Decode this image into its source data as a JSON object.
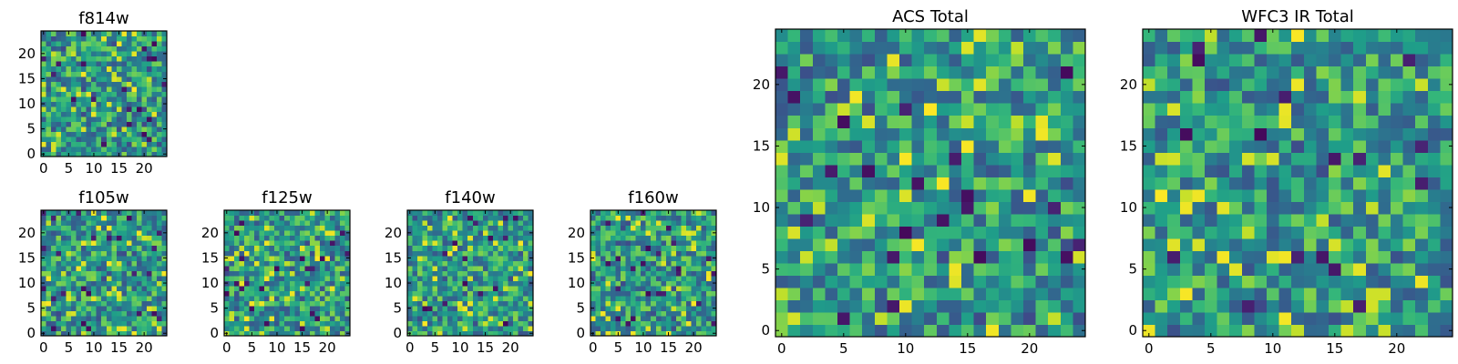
{
  "chart_data": [
    {
      "type": "heatmap",
      "title": "f814w",
      "cells_per_side": 25,
      "xlim": [
        0,
        25
      ],
      "ylim": [
        0,
        25
      ],
      "xticks": [
        0,
        5,
        10,
        15,
        20
      ],
      "yticks": [
        0,
        5,
        10,
        15,
        20
      ],
      "xtick_labels": [
        "0",
        "5",
        "10",
        "15",
        "20"
      ],
      "ytick_labels": [
        "0",
        "5",
        "10",
        "15",
        "20"
      ],
      "colormap": "viridis",
      "value_range": [
        0,
        1
      ],
      "seed": 11
    },
    {
      "type": "heatmap",
      "title": "f105w",
      "cells_per_side": 25,
      "xlim": [
        0,
        25
      ],
      "ylim": [
        0,
        25
      ],
      "xticks": [
        0,
        5,
        10,
        15,
        20
      ],
      "yticks": [
        0,
        5,
        10,
        15,
        20
      ],
      "xtick_labels": [
        "0",
        "5",
        "10",
        "15",
        "20"
      ],
      "ytick_labels": [
        "0",
        "5",
        "10",
        "15",
        "20"
      ],
      "colormap": "viridis",
      "value_range": [
        0,
        1
      ],
      "seed": 23
    },
    {
      "type": "heatmap",
      "title": "f125w",
      "cells_per_side": 25,
      "xlim": [
        0,
        25
      ],
      "ylim": [
        0,
        25
      ],
      "xticks": [
        0,
        5,
        10,
        15,
        20
      ],
      "yticks": [
        0,
        5,
        10,
        15,
        20
      ],
      "xtick_labels": [
        "0",
        "5",
        "10",
        "15",
        "20"
      ],
      "ytick_labels": [
        "0",
        "5",
        "10",
        "15",
        "20"
      ],
      "colormap": "viridis",
      "value_range": [
        0,
        1
      ],
      "seed": 37
    },
    {
      "type": "heatmap",
      "title": "f140w",
      "cells_per_side": 25,
      "xlim": [
        0,
        25
      ],
      "ylim": [
        0,
        25
      ],
      "xticks": [
        0,
        5,
        10,
        15,
        20
      ],
      "yticks": [
        0,
        5,
        10,
        15,
        20
      ],
      "xtick_labels": [
        "0",
        "5",
        "10",
        "15",
        "20"
      ],
      "ytick_labels": [
        "0",
        "5",
        "10",
        "15",
        "20"
      ],
      "colormap": "viridis",
      "value_range": [
        0,
        1
      ],
      "seed": 41
    },
    {
      "type": "heatmap",
      "title": "f160w",
      "cells_per_side": 25,
      "xlim": [
        0,
        25
      ],
      "ylim": [
        0,
        25
      ],
      "xticks": [
        0,
        5,
        10,
        15,
        20
      ],
      "yticks": [
        0,
        5,
        10,
        15,
        20
      ],
      "xtick_labels": [
        "0",
        "5",
        "10",
        "15",
        "20"
      ],
      "ytick_labels": [
        "0",
        "5",
        "10",
        "15",
        "20"
      ],
      "colormap": "viridis",
      "value_range": [
        0,
        1
      ],
      "seed": 53
    },
    {
      "type": "heatmap",
      "title": "ACS Total",
      "cells_per_side": 25,
      "xlim": [
        0,
        25
      ],
      "ylim": [
        0,
        25
      ],
      "xticks": [
        0,
        5,
        10,
        15,
        20
      ],
      "yticks": [
        0,
        5,
        10,
        15,
        20
      ],
      "xtick_labels": [
        "0",
        "5",
        "10",
        "15",
        "20"
      ],
      "ytick_labels": [
        "0",
        "5",
        "10",
        "15",
        "20"
      ],
      "colormap": "viridis",
      "value_range": [
        0,
        1
      ],
      "seed": 67
    },
    {
      "type": "heatmap",
      "title": "WFC3 IR Total",
      "cells_per_side": 25,
      "xlim": [
        0,
        25
      ],
      "ylim": [
        0,
        25
      ],
      "xticks": [
        0,
        5,
        10,
        15,
        20
      ],
      "yticks": [
        0,
        5,
        10,
        15,
        20
      ],
      "xtick_labels": [
        "0",
        "5",
        "10",
        "15",
        "20"
      ],
      "ytick_labels": [
        "0",
        "5",
        "10",
        "15",
        "20"
      ],
      "colormap": "viridis",
      "value_range": [
        0,
        1
      ],
      "seed": 79
    }
  ]
}
